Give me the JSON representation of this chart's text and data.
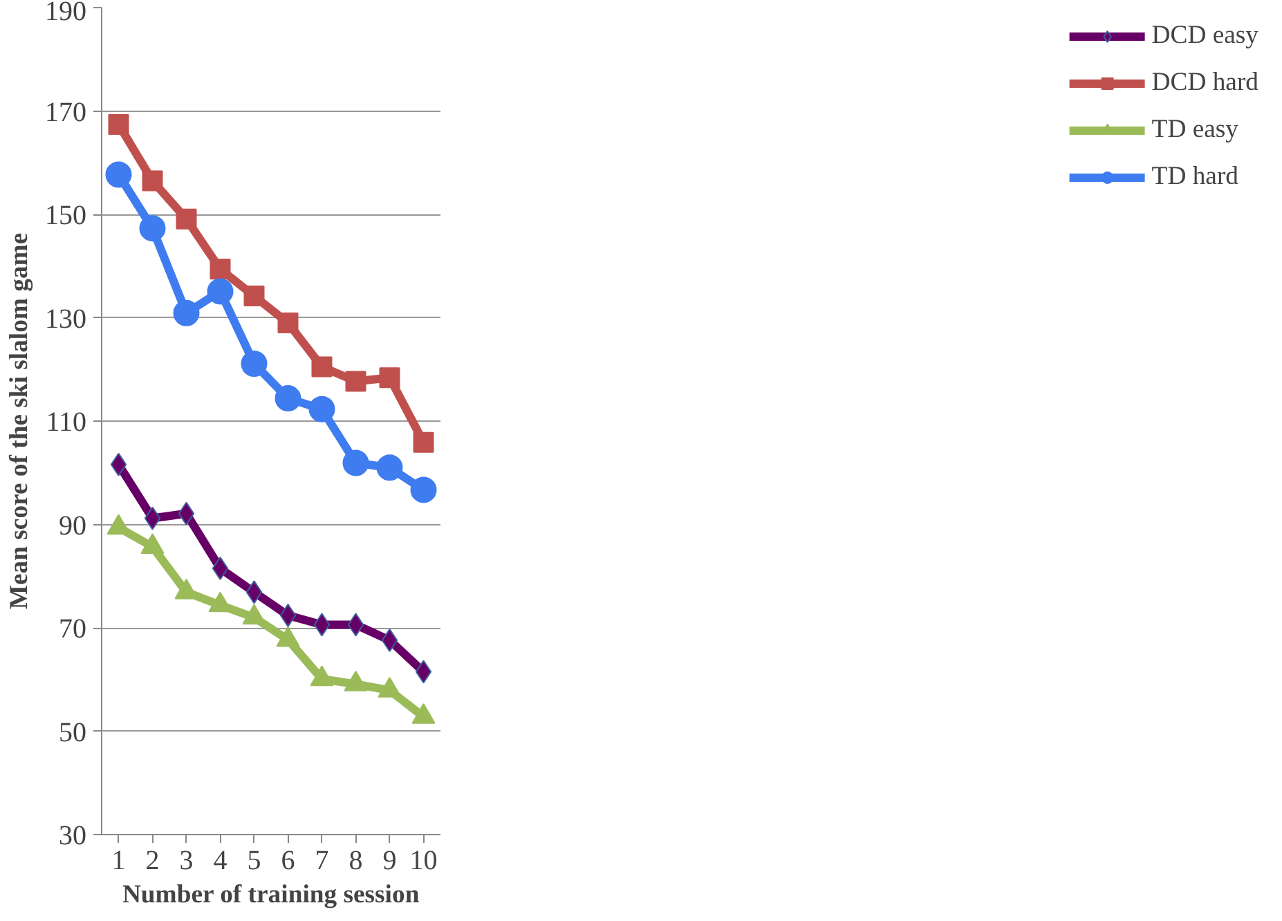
{
  "chart_data": {
    "type": "line",
    "xlabel": "Number of training session",
    "ylabel": "Mean score of the ski slalom game",
    "x": [
      1,
      2,
      3,
      4,
      5,
      6,
      7,
      8,
      9,
      10
    ],
    "xlim": [
      0.5,
      10.5
    ],
    "xticks": [
      1,
      2,
      3,
      4,
      5,
      6,
      7,
      8,
      9,
      10
    ],
    "ylim": [
      30,
      190
    ],
    "yticks": [
      30,
      50,
      70,
      90,
      110,
      130,
      150,
      170,
      190
    ],
    "grid": "y",
    "legend": "right",
    "series": [
      {
        "name": "DCD easy",
        "color": "#660066",
        "marker": "diamond",
        "values": [
          101.6,
          91.2,
          92.1,
          81.5,
          76.9,
          72.4,
          70.6,
          70.6,
          67.6,
          61.5
        ]
      },
      {
        "name": "DCD hard",
        "color": "#c0504d",
        "marker": "square",
        "values": [
          167.4,
          156.5,
          149.1,
          139.4,
          134.2,
          129,
          120.5,
          117.7,
          118.4,
          105.9
        ]
      },
      {
        "name": "TD easy",
        "color": "#9bbb59",
        "marker": "triangle",
        "values": [
          89.4,
          85.7,
          76.9,
          74.4,
          72,
          67.7,
          60.1,
          59.1,
          57.9,
          52.8
        ]
      },
      {
        "name": "TD hard",
        "color": "#3e7cf0",
        "marker": "circle",
        "values": [
          157.7,
          147.3,
          130.9,
          135.1,
          121.1,
          114.4,
          112.3,
          101.9,
          101,
          96.7
        ]
      }
    ]
  }
}
